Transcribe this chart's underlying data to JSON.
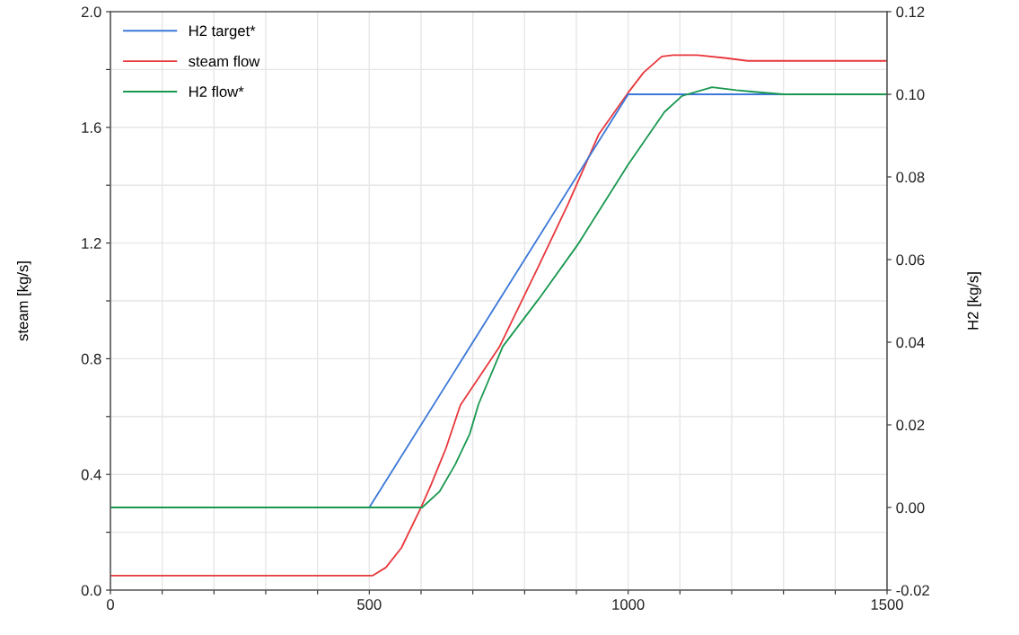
{
  "chart_data": {
    "type": "line",
    "ylabel": "steam [kg/s]",
    "y2label": "H2 [kg/s]",
    "xlim": [
      0,
      1500
    ],
    "xticks": [
      0,
      {
        "value": 100,
        "label": null
      },
      {
        "value": 200,
        "label": null
      },
      {
        "value": 300,
        "label": null
      },
      {
        "value": 400,
        "label": null
      },
      500,
      {
        "value": 600,
        "label": null
      },
      {
        "value": 700,
        "label": null
      },
      {
        "value": 800,
        "label": null
      },
      {
        "value": 900,
        "label": null
      },
      1000,
      {
        "value": 1100,
        "label": null
      },
      {
        "value": 1200,
        "label": null
      },
      {
        "value": 1300,
        "label": null
      },
      {
        "value": 1400,
        "label": null
      },
      1500
    ],
    "ylim": [
      0,
      2
    ],
    "yticks": [
      {
        "value": 0,
        "label": "0.0"
      },
      {
        "value": 0.2,
        "label": null
      },
      0.4,
      {
        "value": 0.6,
        "label": null
      },
      0.8,
      {
        "value": 1.0,
        "label": null
      },
      1.2,
      {
        "value": 1.4,
        "label": null
      },
      1.6,
      {
        "value": 1.8,
        "label": null
      },
      {
        "value": 2.0,
        "label": "2.0"
      }
    ],
    "y2lim": [
      -0.02,
      0.12
    ],
    "y2ticks": [
      {
        "value": -0.02,
        "label": "-0.02"
      },
      {
        "value": 0,
        "label": "0.00"
      },
      0.02,
      0.04,
      0.06,
      0.08,
      {
        "value": 0.1,
        "label": "0.10"
      },
      0.12
    ],
    "grid": true,
    "legend": "top left",
    "line_style": "solid",
    "marker": "none",
    "series": [
      {
        "name": "H2 target*",
        "color": "#3c78d8",
        "axis": "y2",
        "x": [
          0,
          500,
          1000,
          1500
        ],
        "values": [
          0,
          0,
          0.1,
          0.1
        ]
      },
      {
        "name": "steam flow",
        "color": "#e8383d",
        "x": [
          0,
          506,
          532,
          562,
          600,
          619,
          648,
          676,
          751,
          827,
          884,
          943,
          1000,
          1030,
          1065,
          1087,
          1134,
          1186,
          1231,
          1300,
          1500
        ],
        "values": [
          0.05,
          0.05,
          0.078,
          0.146,
          0.286,
          0.363,
          0.49,
          0.64,
          0.84,
          1.12,
          1.335,
          1.575,
          1.72,
          1.79,
          1.845,
          1.85,
          1.85,
          1.84,
          1.83,
          1.83,
          1.83
        ]
      },
      {
        "name": "H2 flow*",
        "color": "#1a9850",
        "axis": "y2",
        "x": [
          0,
          602,
          636,
          666,
          694,
          711,
          758,
          827,
          902,
          1000,
          1070,
          1104,
          1162,
          1209,
          1243,
          1300,
          1500
        ],
        "values": [
          0,
          0,
          0.0039,
          0.0104,
          0.0178,
          0.025,
          0.039,
          0.0504,
          0.0635,
          0.083,
          0.0957,
          0.0996,
          0.1017,
          0.101,
          0.1006,
          0.1,
          0.1
        ]
      }
    ]
  }
}
